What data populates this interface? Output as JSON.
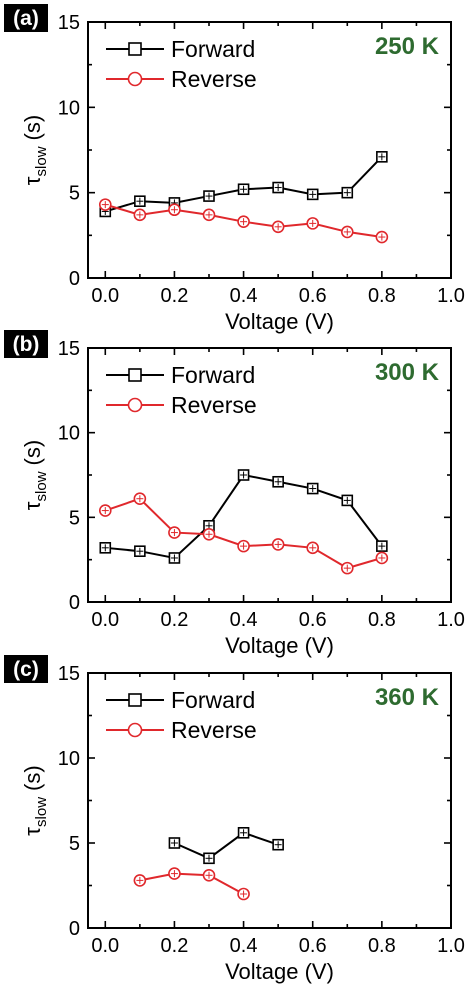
{
  "chart_data": [
    {
      "type": "line",
      "panel_label": "(a)",
      "annotation": "250 K",
      "xlabel": "Voltage (V)",
      "ylabel_symbol": "τ",
      "ylabel_subscript": "slow",
      "ylabel_unit": "(s)",
      "xlim": [
        -0.05,
        1.0
      ],
      "ylim": [
        0,
        15
      ],
      "xticks": [
        "0.0",
        "0.2",
        "0.4",
        "0.6",
        "0.8",
        "1.0"
      ],
      "yticks": [
        "0",
        "5",
        "10",
        "15"
      ],
      "legend_position": "top-left",
      "series": [
        {
          "name": "Forward",
          "marker": "square",
          "color": "#000000",
          "x": [
            0.0,
            0.1,
            0.2,
            0.3,
            0.4,
            0.5,
            0.6,
            0.7,
            0.8
          ],
          "y": [
            3.9,
            4.5,
            4.4,
            4.8,
            5.2,
            5.3,
            4.9,
            5.0,
            7.1
          ]
        },
        {
          "name": "Reverse",
          "marker": "circle",
          "color": "#e0282c",
          "x": [
            0.0,
            0.1,
            0.2,
            0.3,
            0.4,
            0.5,
            0.6,
            0.7,
            0.8
          ],
          "y": [
            4.3,
            3.7,
            4.0,
            3.7,
            3.3,
            3.0,
            3.2,
            2.7,
            2.4
          ]
        }
      ]
    },
    {
      "type": "line",
      "panel_label": "(b)",
      "annotation": "300 K",
      "xlabel": "Voltage (V)",
      "ylabel_symbol": "τ",
      "ylabel_subscript": "slow",
      "ylabel_unit": "(s)",
      "xlim": [
        -0.05,
        1.0
      ],
      "ylim": [
        0,
        15
      ],
      "xticks": [
        "0.0",
        "0.2",
        "0.4",
        "0.6",
        "0.8",
        "1.0"
      ],
      "yticks": [
        "0",
        "5",
        "10",
        "15"
      ],
      "legend_position": "top-left",
      "series": [
        {
          "name": "Forward",
          "marker": "square",
          "color": "#000000",
          "x": [
            0.0,
            0.1,
            0.2,
            0.3,
            0.4,
            0.5,
            0.6,
            0.7,
            0.8
          ],
          "y": [
            3.2,
            3.0,
            2.6,
            4.5,
            7.5,
            7.1,
            6.7,
            6.0,
            3.3
          ]
        },
        {
          "name": "Reverse",
          "marker": "circle",
          "color": "#e0282c",
          "x": [
            0.0,
            0.1,
            0.2,
            0.3,
            0.4,
            0.5,
            0.6,
            0.7,
            0.8
          ],
          "y": [
            5.4,
            6.1,
            4.1,
            4.0,
            3.3,
            3.4,
            3.2,
            2.0,
            2.6
          ]
        }
      ]
    },
    {
      "type": "line",
      "panel_label": "(c)",
      "annotation": "360 K",
      "xlabel": "Voltage (V)",
      "ylabel_symbol": "τ",
      "ylabel_subscript": "slow",
      "ylabel_unit": "(s)",
      "xlim": [
        -0.05,
        1.0
      ],
      "ylim": [
        0,
        15
      ],
      "xticks": [
        "0.0",
        "0.2",
        "0.4",
        "0.6",
        "0.8",
        "1.0"
      ],
      "yticks": [
        "0",
        "5",
        "10",
        "15"
      ],
      "legend_position": "top-left",
      "series": [
        {
          "name": "Forward",
          "marker": "square",
          "color": "#000000",
          "x": [
            0.2,
            0.3,
            0.4,
            0.5
          ],
          "y": [
            5.0,
            4.1,
            5.6,
            4.9
          ]
        },
        {
          "name": "Reverse",
          "marker": "circle",
          "color": "#e0282c",
          "x": [
            0.1,
            0.2,
            0.3,
            0.4
          ],
          "y": [
            2.8,
            3.2,
            3.1,
            2.0
          ]
        }
      ]
    }
  ]
}
